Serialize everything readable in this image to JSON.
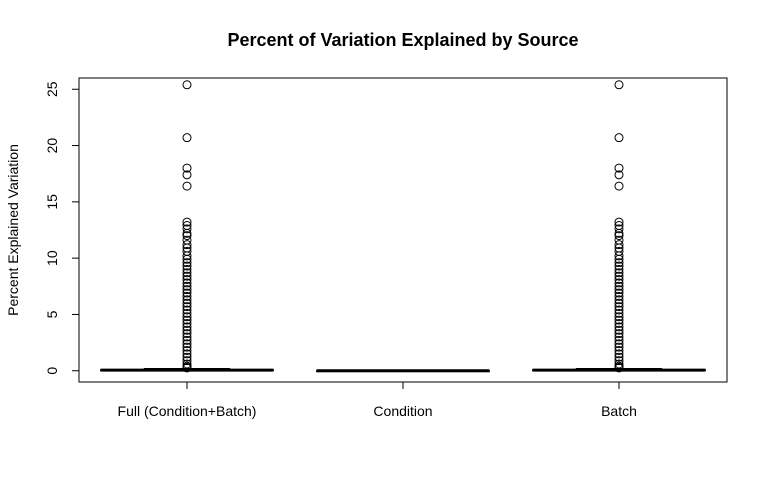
{
  "chart_data": {
    "type": "box",
    "title": "Percent of Variation Explained by Source",
    "xlabel": "",
    "ylabel": "Percent Explained Variation",
    "ylim": [
      -1,
      26
    ],
    "yticks": [
      0,
      5,
      10,
      15,
      20,
      25
    ],
    "categories": [
      "Full (Condition+Batch)",
      "Condition",
      "Batch"
    ],
    "grid": false,
    "legend": "none",
    "series": [
      {
        "min": 0,
        "q1": 0.02,
        "median": 0.05,
        "q3": 0.1,
        "max": 0.2,
        "outliers": [
          25.4,
          20.7,
          18.0,
          17.4,
          16.4,
          13.2,
          12.9,
          12.6,
          12.2,
          12.0,
          11.6,
          11.2,
          10.9,
          10.6,
          10.2,
          9.9,
          9.6,
          9.3,
          9.0,
          8.7,
          8.4,
          8.1,
          7.8,
          7.5,
          7.2,
          6.9,
          6.6,
          6.3,
          6.0,
          5.7,
          5.4,
          5.1,
          4.8,
          4.5,
          4.2,
          3.9,
          3.6,
          3.3,
          3.0,
          2.7,
          2.4,
          2.1,
          1.8,
          1.5,
          1.2,
          0.9,
          0.6,
          0.4,
          0.3,
          0.25
        ]
      },
      {
        "min": 0,
        "q1": 0.0,
        "median": 0.0,
        "q3": 0.01,
        "max": 0.02,
        "outliers": []
      },
      {
        "min": 0,
        "q1": 0.02,
        "median": 0.05,
        "q3": 0.1,
        "max": 0.2,
        "outliers": [
          25.4,
          20.7,
          18.0,
          17.4,
          16.4,
          13.2,
          12.9,
          12.6,
          12.2,
          12.0,
          11.6,
          11.2,
          10.9,
          10.6,
          10.2,
          9.9,
          9.6,
          9.3,
          9.0,
          8.7,
          8.4,
          8.1,
          7.8,
          7.5,
          7.2,
          6.9,
          6.6,
          6.3,
          6.0,
          5.7,
          5.4,
          5.1,
          4.8,
          4.5,
          4.2,
          3.9,
          3.6,
          3.3,
          3.0,
          2.7,
          2.4,
          2.1,
          1.8,
          1.5,
          1.2,
          0.9,
          0.6,
          0.4,
          0.3,
          0.25
        ]
      }
    ]
  }
}
